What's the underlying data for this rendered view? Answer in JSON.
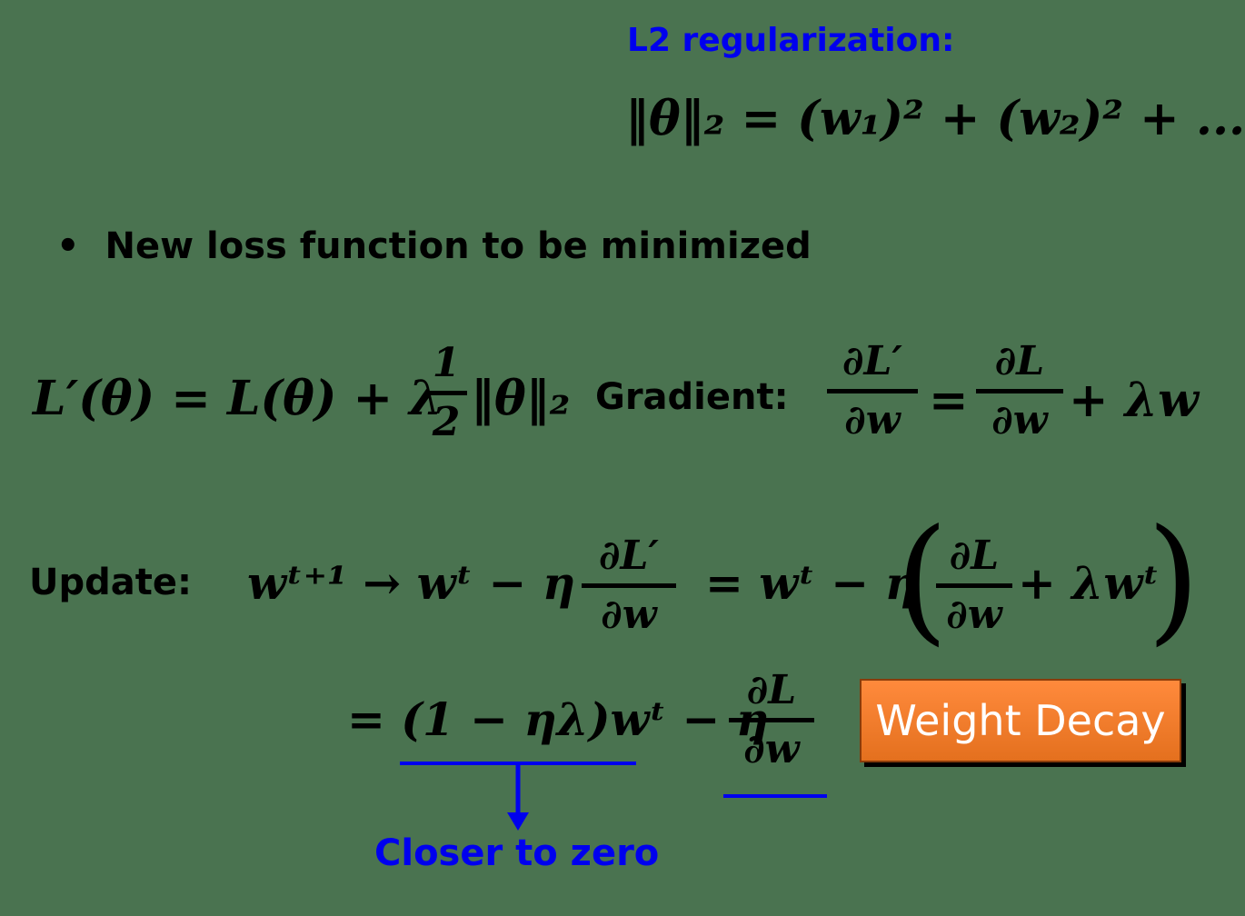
{
  "l2_title": "L2 regularization:",
  "l2_formula": "‖θ‖₂ = (w₁)² + (w₂)² + ...",
  "bullet_marker": "•",
  "bullet_text": "New loss function to be minimized",
  "loss_eq": {
    "lhs": "L′(θ) = L(θ) + λ",
    "half_num": "1",
    "half_den": "2",
    "norm": "‖θ‖₂"
  },
  "gradient": {
    "label": "Gradient:",
    "lhs_num": "∂L′",
    "lhs_den": "∂w",
    "equals": "=",
    "rhs_num": "∂L",
    "rhs_den": "∂w",
    "tail": "+ λw"
  },
  "update": {
    "label": "Update:",
    "lhs": "wᵗ⁺¹ → wᵗ − η",
    "frac_num": "∂L′",
    "frac_den": "∂w",
    "mid": "= wᵗ − η",
    "paren_open": "(",
    "inner_num": "∂L",
    "inner_den": "∂w",
    "inner_tail": "+ λwᵗ",
    "paren_close": ")"
  },
  "second_line": {
    "lhs": "= (1 − ηλ)wᵗ − η",
    "frac_num": "∂L",
    "frac_den": "∂w"
  },
  "badge_label": "Weight Decay",
  "annotation": "Closer to zero",
  "colors": {
    "background": "#4a7350",
    "accent_blue": "#0000ee",
    "badge_orange": "#f07a2a",
    "text": "#000000"
  }
}
